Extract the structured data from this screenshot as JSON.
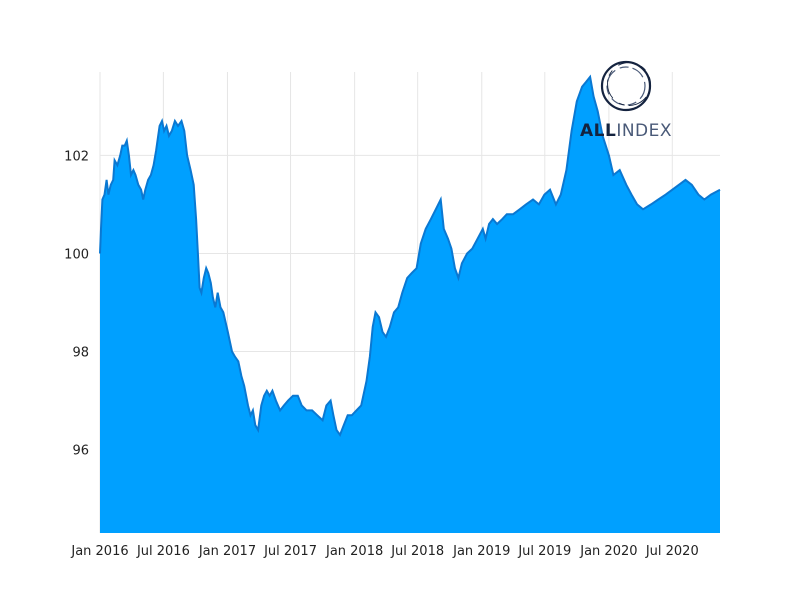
{
  "chart_data": {
    "type": "area",
    "title": "",
    "xlabel": "",
    "ylabel": "",
    "xlim": [
      "2016-01-01",
      "2020-11-15"
    ],
    "ylim": [
      94.3,
      103.7
    ],
    "grid": true,
    "y_ticks": [
      {
        "value": 96,
        "label": "96"
      },
      {
        "value": 98,
        "label": "98"
      },
      {
        "value": 100,
        "label": "100"
      },
      {
        "value": 102,
        "label": "102"
      }
    ],
    "x_ticks": [
      {
        "date": "2016-01-01",
        "label": "Jan 2016"
      },
      {
        "date": "2016-07-01",
        "label": "Jul 2016"
      },
      {
        "date": "2017-01-01",
        "label": "Jan 2017"
      },
      {
        "date": "2017-07-01",
        "label": "Jul 2017"
      },
      {
        "date": "2018-01-01",
        "label": "Jan 2018"
      },
      {
        "date": "2018-07-01",
        "label": "Jul 2018"
      },
      {
        "date": "2019-01-01",
        "label": "Jan 2019"
      },
      {
        "date": "2019-07-01",
        "label": "Jul 2019"
      },
      {
        "date": "2020-01-01",
        "label": "Jan 2020"
      },
      {
        "date": "2020-07-01",
        "label": "Jul 2020"
      }
    ],
    "series": [
      {
        "fill_color": "#00a0ff",
        "line_color": "#0a78d2",
        "points": [
          [
            "2016-01-01",
            100.0
          ],
          [
            "2016-01-04",
            100.5
          ],
          [
            "2016-01-08",
            101.1
          ],
          [
            "2016-01-14",
            101.2
          ],
          [
            "2016-01-20",
            101.5
          ],
          [
            "2016-01-25",
            101.2
          ],
          [
            "2016-02-01",
            101.4
          ],
          [
            "2016-02-08",
            101.5
          ],
          [
            "2016-02-12",
            101.9
          ],
          [
            "2016-02-20",
            101.8
          ],
          [
            "2016-02-28",
            102.0
          ],
          [
            "2016-03-05",
            102.2
          ],
          [
            "2016-03-12",
            102.2
          ],
          [
            "2016-03-18",
            102.3
          ],
          [
            "2016-03-24",
            102.0
          ],
          [
            "2016-03-30",
            101.6
          ],
          [
            "2016-04-06",
            101.7
          ],
          [
            "2016-04-12",
            101.6
          ],
          [
            "2016-04-20",
            101.4
          ],
          [
            "2016-04-28",
            101.3
          ],
          [
            "2016-05-04",
            101.1
          ],
          [
            "2016-05-10",
            101.3
          ],
          [
            "2016-05-18",
            101.5
          ],
          [
            "2016-05-26",
            101.6
          ],
          [
            "2016-06-03",
            101.8
          ],
          [
            "2016-06-10",
            102.1
          ],
          [
            "2016-06-20",
            102.6
          ],
          [
            "2016-06-27",
            102.7
          ],
          [
            "2016-07-03",
            102.5
          ],
          [
            "2016-07-10",
            102.6
          ],
          [
            "2016-07-17",
            102.4
          ],
          [
            "2016-07-25",
            102.5
          ],
          [
            "2016-08-03",
            102.7
          ],
          [
            "2016-08-12",
            102.6
          ],
          [
            "2016-08-22",
            102.7
          ],
          [
            "2016-08-30",
            102.5
          ],
          [
            "2016-09-07",
            102.0
          ],
          [
            "2016-09-17",
            101.7
          ],
          [
            "2016-09-26",
            101.4
          ],
          [
            "2016-10-03",
            100.7
          ],
          [
            "2016-10-08",
            100.0
          ],
          [
            "2016-10-13",
            99.3
          ],
          [
            "2016-10-18",
            99.2
          ],
          [
            "2016-10-25",
            99.5
          ],
          [
            "2016-11-01",
            99.7
          ],
          [
            "2016-11-07",
            99.6
          ],
          [
            "2016-11-14",
            99.4
          ],
          [
            "2016-11-20",
            99.1
          ],
          [
            "2016-11-27",
            98.9
          ],
          [
            "2016-12-04",
            99.2
          ],
          [
            "2016-12-12",
            98.9
          ],
          [
            "2016-12-20",
            98.8
          ],
          [
            "2017-01-02",
            98.4
          ],
          [
            "2017-01-14",
            98.0
          ],
          [
            "2017-01-22",
            97.9
          ],
          [
            "2017-02-01",
            97.8
          ],
          [
            "2017-02-10",
            97.5
          ],
          [
            "2017-02-18",
            97.3
          ],
          [
            "2017-03-01",
            96.9
          ],
          [
            "2017-03-08",
            96.7
          ],
          [
            "2017-03-15",
            96.8
          ],
          [
            "2017-03-22",
            96.5
          ],
          [
            "2017-03-30",
            96.4
          ],
          [
            "2017-04-08",
            96.9
          ],
          [
            "2017-04-16",
            97.1
          ],
          [
            "2017-04-24",
            97.2
          ],
          [
            "2017-05-02",
            97.1
          ],
          [
            "2017-05-10",
            97.2
          ],
          [
            "2017-05-20",
            97.0
          ],
          [
            "2017-06-01",
            96.8
          ],
          [
            "2017-06-12",
            96.9
          ],
          [
            "2017-06-24",
            97.0
          ],
          [
            "2017-07-08",
            97.1
          ],
          [
            "2017-07-22",
            97.1
          ],
          [
            "2017-08-02",
            96.9
          ],
          [
            "2017-08-16",
            96.8
          ],
          [
            "2017-09-01",
            96.8
          ],
          [
            "2017-09-16",
            96.7
          ],
          [
            "2017-10-01",
            96.6
          ],
          [
            "2017-10-12",
            96.9
          ],
          [
            "2017-10-24",
            97.0
          ],
          [
            "2017-11-01",
            96.7
          ],
          [
            "2017-11-10",
            96.4
          ],
          [
            "2017-11-20",
            96.3
          ],
          [
            "2017-12-01",
            96.5
          ],
          [
            "2017-12-12",
            96.7
          ],
          [
            "2017-12-24",
            96.7
          ],
          [
            "2018-01-06",
            96.8
          ],
          [
            "2018-01-20",
            96.9
          ],
          [
            "2018-02-04",
            97.4
          ],
          [
            "2018-02-14",
            97.9
          ],
          [
            "2018-02-22",
            98.5
          ],
          [
            "2018-03-02",
            98.8
          ],
          [
            "2018-03-12",
            98.7
          ],
          [
            "2018-03-22",
            98.4
          ],
          [
            "2018-04-01",
            98.3
          ],
          [
            "2018-04-12",
            98.5
          ],
          [
            "2018-04-24",
            98.8
          ],
          [
            "2018-05-06",
            98.9
          ],
          [
            "2018-05-18",
            99.2
          ],
          [
            "2018-06-01",
            99.5
          ],
          [
            "2018-06-14",
            99.6
          ],
          [
            "2018-06-28",
            99.7
          ],
          [
            "2018-07-10",
            100.2
          ],
          [
            "2018-07-24",
            100.5
          ],
          [
            "2018-08-08",
            100.7
          ],
          [
            "2018-08-22",
            100.9
          ],
          [
            "2018-09-05",
            101.1
          ],
          [
            "2018-09-14",
            100.5
          ],
          [
            "2018-09-26",
            100.3
          ],
          [
            "2018-10-06",
            100.1
          ],
          [
            "2018-10-16",
            99.7
          ],
          [
            "2018-10-26",
            99.5
          ],
          [
            "2018-11-05",
            99.8
          ],
          [
            "2018-11-20",
            100.0
          ],
          [
            "2018-12-05",
            100.1
          ],
          [
            "2018-12-20",
            100.3
          ],
          [
            "2019-01-04",
            100.5
          ],
          [
            "2019-01-12",
            100.3
          ],
          [
            "2019-01-22",
            100.6
          ],
          [
            "2019-02-02",
            100.7
          ],
          [
            "2019-02-14",
            100.6
          ],
          [
            "2019-03-01",
            100.7
          ],
          [
            "2019-03-14",
            100.8
          ],
          [
            "2019-04-01",
            100.8
          ],
          [
            "2019-04-20",
            100.9
          ],
          [
            "2019-05-08",
            101.0
          ],
          [
            "2019-05-28",
            101.1
          ],
          [
            "2019-06-14",
            101.0
          ],
          [
            "2019-06-30",
            101.2
          ],
          [
            "2019-07-16",
            101.3
          ],
          [
            "2019-08-02",
            101.0
          ],
          [
            "2019-08-16",
            101.2
          ],
          [
            "2019-09-01",
            101.7
          ],
          [
            "2019-09-16",
            102.5
          ],
          [
            "2019-10-01",
            103.1
          ],
          [
            "2019-10-16",
            103.4
          ],
          [
            "2019-10-28",
            103.5
          ],
          [
            "2019-11-08",
            103.6
          ],
          [
            "2019-11-18",
            103.2
          ],
          [
            "2019-11-30",
            102.9
          ],
          [
            "2019-12-14",
            102.4
          ],
          [
            "2020-01-01",
            102.0
          ],
          [
            "2020-01-14",
            101.6
          ],
          [
            "2020-02-01",
            101.7
          ],
          [
            "2020-02-20",
            101.4
          ],
          [
            "2020-03-06",
            101.2
          ],
          [
            "2020-03-22",
            101.0
          ],
          [
            "2020-04-08",
            100.9
          ],
          [
            "2020-05-01",
            101.0
          ],
          [
            "2020-05-22",
            101.1
          ],
          [
            "2020-06-12",
            101.2
          ],
          [
            "2020-07-01",
            101.3
          ],
          [
            "2020-07-20",
            101.4
          ],
          [
            "2020-08-08",
            101.5
          ],
          [
            "2020-08-26",
            101.4
          ],
          [
            "2020-09-14",
            101.2
          ],
          [
            "2020-10-01",
            101.1
          ],
          [
            "2020-10-20",
            101.2
          ],
          [
            "2020-11-15",
            101.3
          ]
        ]
      }
    ]
  },
  "logo": {
    "text_bold": "ALL",
    "text_light": "INDEX",
    "dark_color": "#14233f",
    "mid_color": "#4a5a78"
  }
}
